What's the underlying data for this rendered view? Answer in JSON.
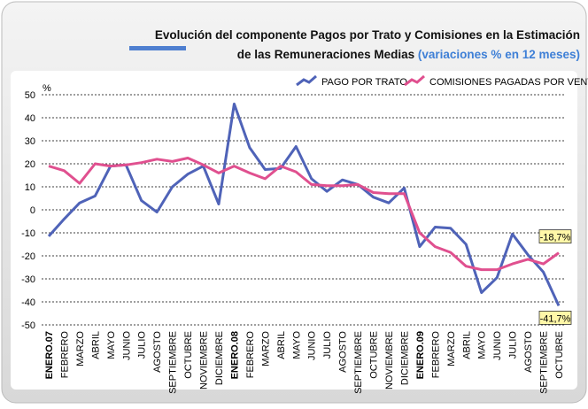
{
  "chart_data": {
    "type": "line",
    "title": "Evolución del componente Pagos por Trato y Comisiones en la Estimación",
    "title_line2": "de las Remuneraciones Medias",
    "subtitle": "(variaciones % en 12 meses)",
    "ylabel": "%",
    "categories": [
      "ENERO.07",
      "FEBRERO",
      "MARZO",
      "ABRIL",
      "MAYO",
      "JUNIO",
      "JULIO",
      "AGOSTO",
      "SEPTIEMBRE",
      "OCTUBRE",
      "NOVIEMBRE",
      "DICIEMBRE",
      "ENERO.08",
      "FEBRERO",
      "MARZO",
      "ABRIL",
      "MAYO",
      "JUNIO",
      "JULIO",
      "AGOSTO",
      "SEPTIEMBRE",
      "OCTUBRE",
      "NOVIEMBRE",
      "DICIEMBRE",
      "ENERO.09",
      "FEBRERO",
      "MARZO",
      "ABRIL",
      "MAYO",
      "JUNIO",
      "JULIO",
      "AGOSTO",
      "SEPTIEMBRE",
      "OCTUBRE"
    ],
    "series": [
      {
        "name": "PAGO POR TRATO",
        "color": "#4f63b8",
        "values": [
          -11.5,
          -4,
          3,
          6,
          19,
          19.5,
          4,
          -1,
          10,
          15.5,
          19,
          2.5,
          46,
          27,
          17.5,
          18,
          27.5,
          13.5,
          8,
          13,
          11,
          5.5,
          3,
          9.5,
          -16,
          -7.5,
          -8,
          -15,
          -36,
          -29.5,
          -10.5,
          -19.5,
          -27,
          -41.7
        ],
        "value_labels": [
          null,
          null,
          null,
          null,
          null,
          null,
          null,
          null,
          null,
          null,
          null,
          null,
          null,
          null,
          null,
          null,
          null,
          null,
          null,
          null,
          null,
          null,
          null,
          null,
          null,
          null,
          null,
          null,
          null,
          null,
          null,
          null,
          null,
          "-41,7%"
        ]
      },
      {
        "name": "COMISIONES PAGADAS POR VENTA",
        "color": "#e0508f",
        "values": [
          19,
          17,
          11.5,
          20,
          19,
          19.5,
          20.5,
          22,
          21,
          22.5,
          19.5,
          16,
          19,
          16,
          13.5,
          19,
          16.5,
          11,
          10.5,
          10.5,
          11,
          7.5,
          7,
          7,
          -10,
          -16,
          -18.5,
          -24.5,
          -26,
          -26,
          -23.5,
          -21.5,
          -23.5,
          -18.7
        ],
        "value_labels": [
          null,
          null,
          null,
          null,
          null,
          null,
          null,
          null,
          null,
          null,
          null,
          null,
          null,
          null,
          null,
          null,
          null,
          null,
          null,
          null,
          null,
          null,
          null,
          null,
          null,
          null,
          null,
          null,
          null,
          null,
          null,
          null,
          null,
          "-18,7%"
        ]
      }
    ],
    "ylim": [
      -50,
      50
    ],
    "yticks": [
      -50,
      -40,
      -30,
      -20,
      -10,
      0,
      10,
      20,
      30,
      40,
      50
    ],
    "grid": true,
    "legend": "top-right"
  }
}
